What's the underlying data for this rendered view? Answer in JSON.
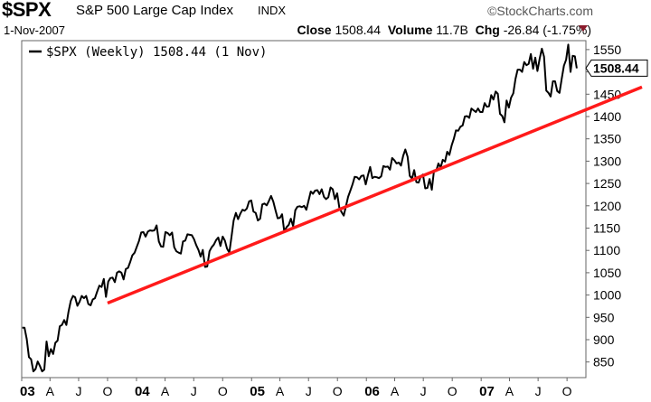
{
  "header": {
    "ticker": "$SPX",
    "name": "S&P 500 Large Cap Index",
    "exchange": "INDX",
    "brand": "©StockCharts.com",
    "date": "1-Nov-2007",
    "close_label": "Close",
    "close_value": "1508.44",
    "volume_label": "Volume",
    "volume_value": "11.7B",
    "chg_label": "Chg",
    "chg_value": "-26.84 (-1.75%)",
    "chg_color": "#8b1a2b"
  },
  "chart_data": {
    "type": "line",
    "legend": "$SPX (Weekly) 1508.44 (1 Nov)",
    "last_value_label": "1508.44",
    "y_ticks": [
      850,
      900,
      950,
      1000,
      1050,
      1100,
      1150,
      1200,
      1250,
      1300,
      1350,
      1400,
      1450,
      1500,
      1550
    ],
    "x_tick_labels": [
      "03",
      "A",
      "J",
      "O",
      "04",
      "A",
      "J",
      "O",
      "05",
      "A",
      "J",
      "O",
      "06",
      "A",
      "J",
      "O",
      "07",
      "A",
      "J",
      "O"
    ],
    "x_ticks_bold": [
      "03",
      "04",
      "05",
      "06",
      "07"
    ],
    "ylim": [
      815,
      1570
    ],
    "series": [
      {
        "color": "#000000",
        "x": [
          "2003-01-03",
          "2003-01-10",
          "2003-01-17",
          "2003-01-24",
          "2003-01-31",
          "2003-02-07",
          "2003-02-14",
          "2003-02-21",
          "2003-02-28",
          "2003-03-07",
          "2003-03-14",
          "2003-03-21",
          "2003-03-28",
          "2003-04-04",
          "2003-04-11",
          "2003-04-18",
          "2003-04-25",
          "2003-05-02",
          "2003-05-09",
          "2003-05-16",
          "2003-05-23",
          "2003-05-30",
          "2003-06-06",
          "2003-06-13",
          "2003-06-20",
          "2003-06-27",
          "2003-07-04",
          "2003-07-11",
          "2003-07-18",
          "2003-07-25",
          "2003-08-01",
          "2003-08-08",
          "2003-08-15",
          "2003-08-22",
          "2003-08-29",
          "2003-09-05",
          "2003-09-12",
          "2003-09-19",
          "2003-09-26",
          "2003-10-03",
          "2003-10-10",
          "2003-10-17",
          "2003-10-24",
          "2003-10-31",
          "2003-11-07",
          "2003-11-14",
          "2003-11-21",
          "2003-11-28",
          "2003-12-05",
          "2003-12-12",
          "2003-12-19",
          "2003-12-26",
          "2004-01-02",
          "2004-01-09",
          "2004-01-16",
          "2004-01-23",
          "2004-01-30",
          "2004-02-06",
          "2004-02-13",
          "2004-02-20",
          "2004-02-27",
          "2004-03-05",
          "2004-03-12",
          "2004-03-19",
          "2004-03-26",
          "2004-04-02",
          "2004-04-09",
          "2004-04-16",
          "2004-04-23",
          "2004-04-30",
          "2004-05-07",
          "2004-05-14",
          "2004-05-21",
          "2004-05-28",
          "2004-06-04",
          "2004-06-11",
          "2004-06-18",
          "2004-06-25",
          "2004-07-02",
          "2004-07-09",
          "2004-07-16",
          "2004-07-23",
          "2004-07-30",
          "2004-08-06",
          "2004-08-13",
          "2004-08-20",
          "2004-08-27",
          "2004-09-03",
          "2004-09-10",
          "2004-09-17",
          "2004-09-24",
          "2004-10-01",
          "2004-10-08",
          "2004-10-15",
          "2004-10-22",
          "2004-10-29",
          "2004-11-05",
          "2004-11-12",
          "2004-11-19",
          "2004-11-26",
          "2004-12-03",
          "2004-12-10",
          "2004-12-17",
          "2004-12-24",
          "2004-12-31",
          "2005-01-07",
          "2005-01-14",
          "2005-01-21",
          "2005-01-28",
          "2005-02-04",
          "2005-02-11",
          "2005-02-18",
          "2005-02-25",
          "2005-03-04",
          "2005-03-11",
          "2005-03-18",
          "2005-03-25",
          "2005-04-01",
          "2005-04-08",
          "2005-04-15",
          "2005-04-22",
          "2005-04-29",
          "2005-05-06",
          "2005-05-13",
          "2005-05-20",
          "2005-05-27",
          "2005-06-03",
          "2005-06-10",
          "2005-06-17",
          "2005-06-24",
          "2005-07-01",
          "2005-07-08",
          "2005-07-15",
          "2005-07-22",
          "2005-07-29",
          "2005-08-05",
          "2005-08-12",
          "2005-08-19",
          "2005-08-26",
          "2005-09-02",
          "2005-09-09",
          "2005-09-16",
          "2005-09-23",
          "2005-09-30",
          "2005-10-07",
          "2005-10-14",
          "2005-10-21",
          "2005-10-28",
          "2005-11-04",
          "2005-11-11",
          "2005-11-18",
          "2005-11-25",
          "2005-12-02",
          "2005-12-09",
          "2005-12-16",
          "2005-12-23",
          "2005-12-30",
          "2006-01-06",
          "2006-01-13",
          "2006-01-20",
          "2006-01-27",
          "2006-02-03",
          "2006-02-10",
          "2006-02-17",
          "2006-02-24",
          "2006-03-03",
          "2006-03-10",
          "2006-03-17",
          "2006-03-24",
          "2006-03-31",
          "2006-04-07",
          "2006-04-14",
          "2006-04-21",
          "2006-04-28",
          "2006-05-05",
          "2006-05-12",
          "2006-05-19",
          "2006-05-26",
          "2006-06-02",
          "2006-06-09",
          "2006-06-16",
          "2006-06-23",
          "2006-06-30",
          "2006-07-07",
          "2006-07-14",
          "2006-07-21",
          "2006-07-28",
          "2006-08-04",
          "2006-08-11",
          "2006-08-18",
          "2006-08-25",
          "2006-09-01",
          "2006-09-08",
          "2006-09-15",
          "2006-09-22",
          "2006-09-29",
          "2006-10-06",
          "2006-10-13",
          "2006-10-20",
          "2006-10-27",
          "2006-11-03",
          "2006-11-10",
          "2006-11-17",
          "2006-11-24",
          "2006-12-01",
          "2006-12-08",
          "2006-12-15",
          "2006-12-22",
          "2006-12-29",
          "2007-01-05",
          "2007-01-12",
          "2007-01-19",
          "2007-01-26",
          "2007-02-02",
          "2007-02-09",
          "2007-02-16",
          "2007-02-23",
          "2007-03-02",
          "2007-03-09",
          "2007-03-16",
          "2007-03-23",
          "2007-03-30",
          "2007-04-06",
          "2007-04-13",
          "2007-04-20",
          "2007-04-27",
          "2007-05-04",
          "2007-05-11",
          "2007-05-18",
          "2007-05-25",
          "2007-06-01",
          "2007-06-08",
          "2007-06-15",
          "2007-06-22",
          "2007-06-29",
          "2007-07-06",
          "2007-07-13",
          "2007-07-20",
          "2007-07-27",
          "2007-08-03",
          "2007-08-10",
          "2007-08-17",
          "2007-08-24",
          "2007-08-31",
          "2007-09-07",
          "2007-09-14",
          "2007-09-21",
          "2007-09-28",
          "2007-10-05",
          "2007-10-12",
          "2007-10-19",
          "2007-10-26",
          "2007-11-01"
        ],
        "values": [
          927,
          927,
          901,
          861,
          856,
          829,
          834,
          851,
          841,
          829,
          833,
          896,
          863,
          879,
          868,
          893,
          898,
          930,
          933,
          944,
          933,
          963,
          987,
          998,
          995,
          976,
          985,
          998,
          993,
          998,
          980,
          977,
          990,
          993,
          1008,
          1021,
          1018,
          1036,
          996,
          1030,
          1038,
          1039,
          1029,
          1050,
          1053,
          1050,
          1035,
          1058,
          1061,
          1074,
          1089,
          1095,
          1108,
          1121,
          1140,
          1141,
          1131,
          1142,
          1145,
          1144,
          1145,
          1156,
          1120,
          1109,
          1108,
          1141,
          1139,
          1134,
          1140,
          1107,
          1098,
          1095,
          1093,
          1120,
          1122,
          1136,
          1135,
          1134,
          1125,
          1112,
          1101,
          1086,
          1101,
          1063,
          1064,
          1098,
          1107,
          1113,
          1123,
          1129,
          1110,
          1131,
          1122,
          1104,
          1095,
          1130,
          1167,
          1184,
          1170,
          1182,
          1191,
          1189,
          1194,
          1210,
          1212,
          1187,
          1184,
          1167,
          1171,
          1203,
          1205,
          1201,
          1211,
          1222,
          1209,
          1190,
          1172,
          1173,
          1181,
          1142,
          1152,
          1157,
          1171,
          1154,
          1190,
          1198,
          1199,
          1197,
          1200,
          1191,
          1211,
          1232,
          1227,
          1234,
          1235,
          1226,
          1237,
          1220,
          1215,
          1219,
          1241,
          1237,
          1215,
          1228,
          1196,
          1186,
          1178,
          1199,
          1220,
          1234,
          1248,
          1265,
          1264,
          1259,
          1267,
          1268,
          1248,
          1269,
          1287,
          1262,
          1265,
          1264,
          1262,
          1266,
          1289,
          1287,
          1288,
          1281,
          1307,
          1302,
          1295,
          1297,
          1290,
          1312,
          1326,
          1310,
          1267,
          1261,
          1280,
          1253,
          1252,
          1266,
          1270,
          1239,
          1240,
          1260,
          1236,
          1279,
          1278,
          1295,
          1285,
          1303,
          1299,
          1321,
          1314,
          1335,
          1350,
          1369,
          1368,
          1377,
          1380,
          1400,
          1401,
          1397,
          1418,
          1414,
          1410,
          1418,
          1410,
          1410,
          1430,
          1422,
          1423,
          1448,
          1438,
          1456,
          1451,
          1406,
          1401,
          1387,
          1436,
          1420,
          1442,
          1452,
          1484,
          1505,
          1505,
          1500,
          1522,
          1515,
          1518,
          1540,
          1507,
          1532,
          1502,
          1530,
          1552,
          1534,
          1458,
          1453,
          1445,
          1479,
          1479,
          1457,
          1453,
          1484,
          1514,
          1527,
          1561,
          1500,
          1536,
          1535,
          1508
        ]
      },
      {
        "color": "#ff1a1a",
        "x": [
          "2003-10-01",
          "2007-11-30"
        ],
        "values": [
          982,
          1385
        ]
      }
    ]
  }
}
